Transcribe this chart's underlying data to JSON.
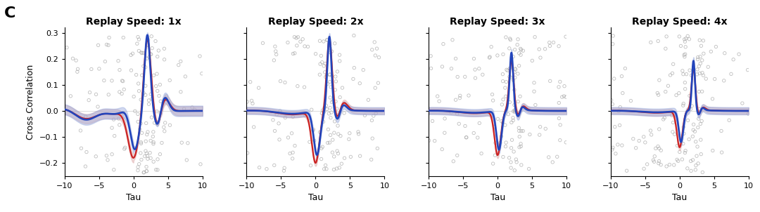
{
  "titles": [
    "Replay Speed: 1x",
    "Replay Speed: 2x",
    "Replay Speed: 3x",
    "Replay Speed: 4x"
  ],
  "xlabel": "Tau",
  "ylabel": "Cross Correlation",
  "panel_label": "C",
  "xlim": [
    -10,
    10
  ],
  "ylim": [
    -0.25,
    0.32
  ],
  "yticks": [
    -0.2,
    -0.1,
    0.0,
    0.1,
    0.2,
    0.3
  ],
  "xticks": [
    -10,
    -5,
    0,
    5,
    10
  ],
  "blue_color": "#2244bb",
  "red_color": "#cc2222",
  "blue_fill": "#99aadd",
  "red_fill": "#ddaaaa",
  "scatter_color": "#aaaaaa",
  "background_color": "#ffffff",
  "title_fontsize": 10,
  "label_fontsize": 9,
  "tick_fontsize": 8
}
